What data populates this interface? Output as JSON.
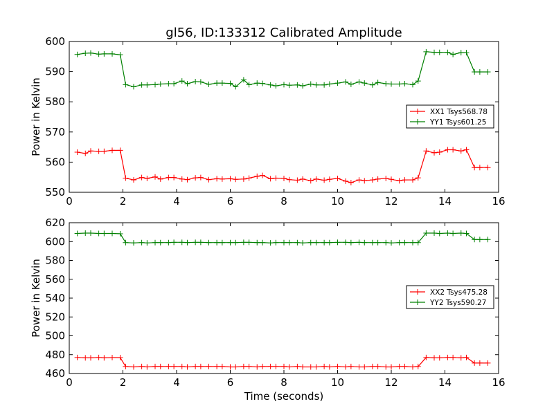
{
  "chart_data": {
    "title": "gl56, ID:133312 Calibrated Amplitude",
    "xlabel": "Time (seconds)",
    "panels": [
      {
        "type": "line",
        "ylabel": "Power in Kelvin",
        "xlim": [
          0,
          16
        ],
        "ylim": [
          550,
          600
        ],
        "xticks": [
          "0",
          "2",
          "4",
          "6",
          "8",
          "10",
          "12",
          "14",
          "16"
        ],
        "yticks": [
          "550",
          "560",
          "570",
          "580",
          "590",
          "600"
        ],
        "legend_position": "center-right",
        "x": [
          0.3,
          0.6,
          0.8,
          1.1,
          1.3,
          1.6,
          1.9,
          2.1,
          2.4,
          2.7,
          2.9,
          3.2,
          3.4,
          3.7,
          3.9,
          4.2,
          4.4,
          4.7,
          4.9,
          5.2,
          5.5,
          5.7,
          6.0,
          6.2,
          6.5,
          6.7,
          7.0,
          7.2,
          7.5,
          7.7,
          8.0,
          8.2,
          8.5,
          8.7,
          9.0,
          9.2,
          9.5,
          9.7,
          10.0,
          10.3,
          10.5,
          10.8,
          11.0,
          11.3,
          11.5,
          11.8,
          12.0,
          12.3,
          12.5,
          12.8,
          13.0,
          13.3,
          13.6,
          13.8,
          14.1,
          14.3,
          14.6,
          14.8,
          15.1,
          15.3,
          15.6
        ],
        "series": [
          {
            "name": "XX1 Tsys568.78",
            "color": "#ff0000",
            "values": [
              563.3,
              562.9,
              563.7,
              563.6,
              563.6,
              563.9,
              563.9,
              554.7,
              554.1,
              554.9,
              554.6,
              555.1,
              554.4,
              554.9,
              554.9,
              554.4,
              554.2,
              554.8,
              554.9,
              554.2,
              554.5,
              554.4,
              554.5,
              554.3,
              554.4,
              554.7,
              555.3,
              555.6,
              554.5,
              554.7,
              554.6,
              554.2,
              554.0,
              554.4,
              553.8,
              554.4,
              554.0,
              554.3,
              554.6,
              553.7,
              553.2,
              554.1,
              553.8,
              554.1,
              554.4,
              554.6,
              554.3,
              553.8,
              554.1,
              554.1,
              554.8,
              563.7,
              563.1,
              563.3,
              564.1,
              564.1,
              563.7,
              564.1,
              558.2,
              558.2,
              558.2
            ]
          },
          {
            "name": "YY1 Tsys601.25",
            "color": "#008000",
            "values": [
              595.7,
              596.1,
              596.2,
              595.8,
              595.9,
              595.9,
              595.6,
              585.7,
              585.0,
              585.6,
              585.6,
              585.7,
              585.9,
              586.0,
              586.0,
              586.9,
              586.0,
              586.7,
              586.6,
              585.8,
              586.2,
              586.2,
              586.1,
              585.0,
              587.3,
              585.7,
              586.2,
              586.1,
              585.6,
              585.3,
              585.7,
              585.5,
              585.6,
              585.3,
              585.9,
              585.6,
              585.6,
              585.9,
              586.2,
              586.6,
              585.8,
              586.6,
              586.2,
              585.6,
              586.4,
              586.0,
              585.9,
              585.9,
              586.0,
              585.7,
              586.9,
              596.6,
              596.4,
              596.4,
              596.4,
              595.7,
              596.3,
              596.3,
              589.9,
              589.9,
              589.9
            ]
          }
        ]
      },
      {
        "type": "line",
        "ylabel": "Power in Kelvin",
        "xlim": [
          0,
          16
        ],
        "ylim": [
          460,
          620
        ],
        "xticks": [
          "0",
          "2",
          "4",
          "6",
          "8",
          "10",
          "12",
          "14",
          "16"
        ],
        "yticks": [
          "460",
          "480",
          "500",
          "520",
          "540",
          "560",
          "580",
          "600",
          "620"
        ],
        "legend_position": "center-right",
        "x": [
          0.3,
          0.6,
          0.8,
          1.1,
          1.3,
          1.6,
          1.9,
          2.1,
          2.4,
          2.7,
          2.9,
          3.2,
          3.4,
          3.7,
          3.9,
          4.2,
          4.4,
          4.7,
          4.9,
          5.2,
          5.5,
          5.7,
          6.0,
          6.2,
          6.5,
          6.7,
          7.0,
          7.2,
          7.5,
          7.7,
          8.0,
          8.2,
          8.5,
          8.7,
          9.0,
          9.2,
          9.5,
          9.7,
          10.0,
          10.3,
          10.5,
          10.8,
          11.0,
          11.3,
          11.5,
          11.8,
          12.0,
          12.3,
          12.5,
          12.8,
          13.0,
          13.3,
          13.6,
          13.8,
          14.1,
          14.3,
          14.6,
          14.8,
          15.1,
          15.3,
          15.6
        ],
        "series": [
          {
            "name": "XX2 Tsys475.28",
            "color": "#ff0000",
            "values": [
              477.0,
              476.6,
              476.6,
              477.0,
              476.6,
              476.9,
              476.9,
              467.4,
              467.0,
              467.4,
              467.0,
              467.4,
              467.4,
              467.4,
              467.4,
              467.4,
              467.0,
              467.4,
              467.4,
              467.4,
              467.4,
              467.4,
              467.0,
              467.0,
              467.4,
              467.4,
              467.0,
              467.4,
              467.4,
              467.4,
              467.4,
              467.0,
              467.4,
              467.0,
              467.0,
              467.0,
              467.4,
              467.0,
              467.4,
              467.0,
              467.4,
              467.0,
              467.0,
              467.4,
              467.4,
              467.0,
              467.0,
              467.4,
              467.4,
              467.0,
              467.4,
              477.0,
              476.6,
              476.6,
              477.0,
              477.0,
              476.6,
              477.0,
              471.1,
              471.1,
              471.1
            ]
          },
          {
            "name": "YY2 Tsys590.27",
            "color": "#008000",
            "values": [
              608.6,
              609.0,
              609.0,
              608.6,
              608.6,
              608.6,
              608.3,
              598.9,
              598.6,
              598.9,
              598.6,
              598.9,
              598.9,
              598.9,
              599.2,
              599.2,
              598.9,
              599.2,
              599.2,
              598.9,
              598.9,
              598.9,
              598.9,
              598.9,
              599.2,
              599.2,
              598.9,
              598.9,
              598.6,
              598.9,
              598.9,
              598.9,
              598.9,
              598.6,
              598.9,
              598.9,
              598.9,
              598.9,
              599.2,
              599.2,
              598.9,
              599.2,
              598.9,
              598.9,
              598.9,
              598.9,
              598.6,
              598.9,
              598.9,
              598.9,
              598.9,
              609.0,
              609.0,
              608.6,
              609.0,
              608.6,
              609.0,
              608.6,
              602.2,
              602.2,
              602.2
            ]
          }
        ]
      }
    ]
  }
}
